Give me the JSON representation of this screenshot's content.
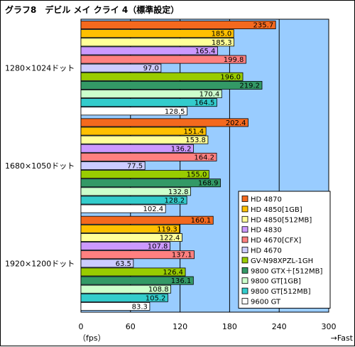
{
  "chart_data": {
    "type": "bar",
    "orientation": "horizontal",
    "title": "グラフ8　デビル メイ クライ 4（標準設定）",
    "categories": [
      "1280×1024ドット",
      "1680×1050ドット",
      "1920×1200ドット"
    ],
    "series": [
      {
        "name": "HD 4870",
        "color": "#f4691e",
        "values": [
          235.7,
          202.4,
          160.1
        ]
      },
      {
        "name": "HD 4850[1GB]",
        "color": "#ffc000",
        "values": [
          185.0,
          151.4,
          119.3
        ]
      },
      {
        "name": "HD 4850[512MB]",
        "color": "#ffff99",
        "values": [
          185.3,
          153.8,
          122.4
        ]
      },
      {
        "name": "HD 4830",
        "color": "#cc99ff",
        "values": [
          165.4,
          136.2,
          107.8
        ]
      },
      {
        "name": "HD 4670[CFX]",
        "color": "#ff8080",
        "values": [
          199.8,
          164.2,
          137.1
        ]
      },
      {
        "name": "HD 4670",
        "color": "#ccccff",
        "values": [
          97.0,
          77.5,
          63.5
        ]
      },
      {
        "name": "GV-N98XPZL-1GH",
        "color": "#99cc00",
        "values": [
          196.0,
          155.0,
          126.4
        ]
      },
      {
        "name": "9800 GTX＋[512MB]",
        "color": "#339966",
        "values": [
          219.2,
          168.9,
          136.1
        ]
      },
      {
        "name": "9800 GT[1GB]",
        "color": "#ccffcc",
        "values": [
          170.4,
          132.8,
          108.8
        ]
      },
      {
        "name": "9800 GT[512MB]",
        "color": "#33cccc",
        "values": [
          164.5,
          128.2,
          105.2
        ]
      },
      {
        "name": "9600 GT",
        "color": "#ffffff",
        "values": [
          128.5,
          102.4,
          83.3
        ]
      }
    ],
    "xlim": [
      0,
      300
    ],
    "xticks": [
      "0",
      "60",
      "120",
      "180",
      "240",
      "300"
    ],
    "xlabel_left": "（fps）",
    "xlabel_right": "→Fast",
    "plot_background": "#99ccff",
    "legend_position": "bottom-right",
    "grid": "vertical"
  }
}
